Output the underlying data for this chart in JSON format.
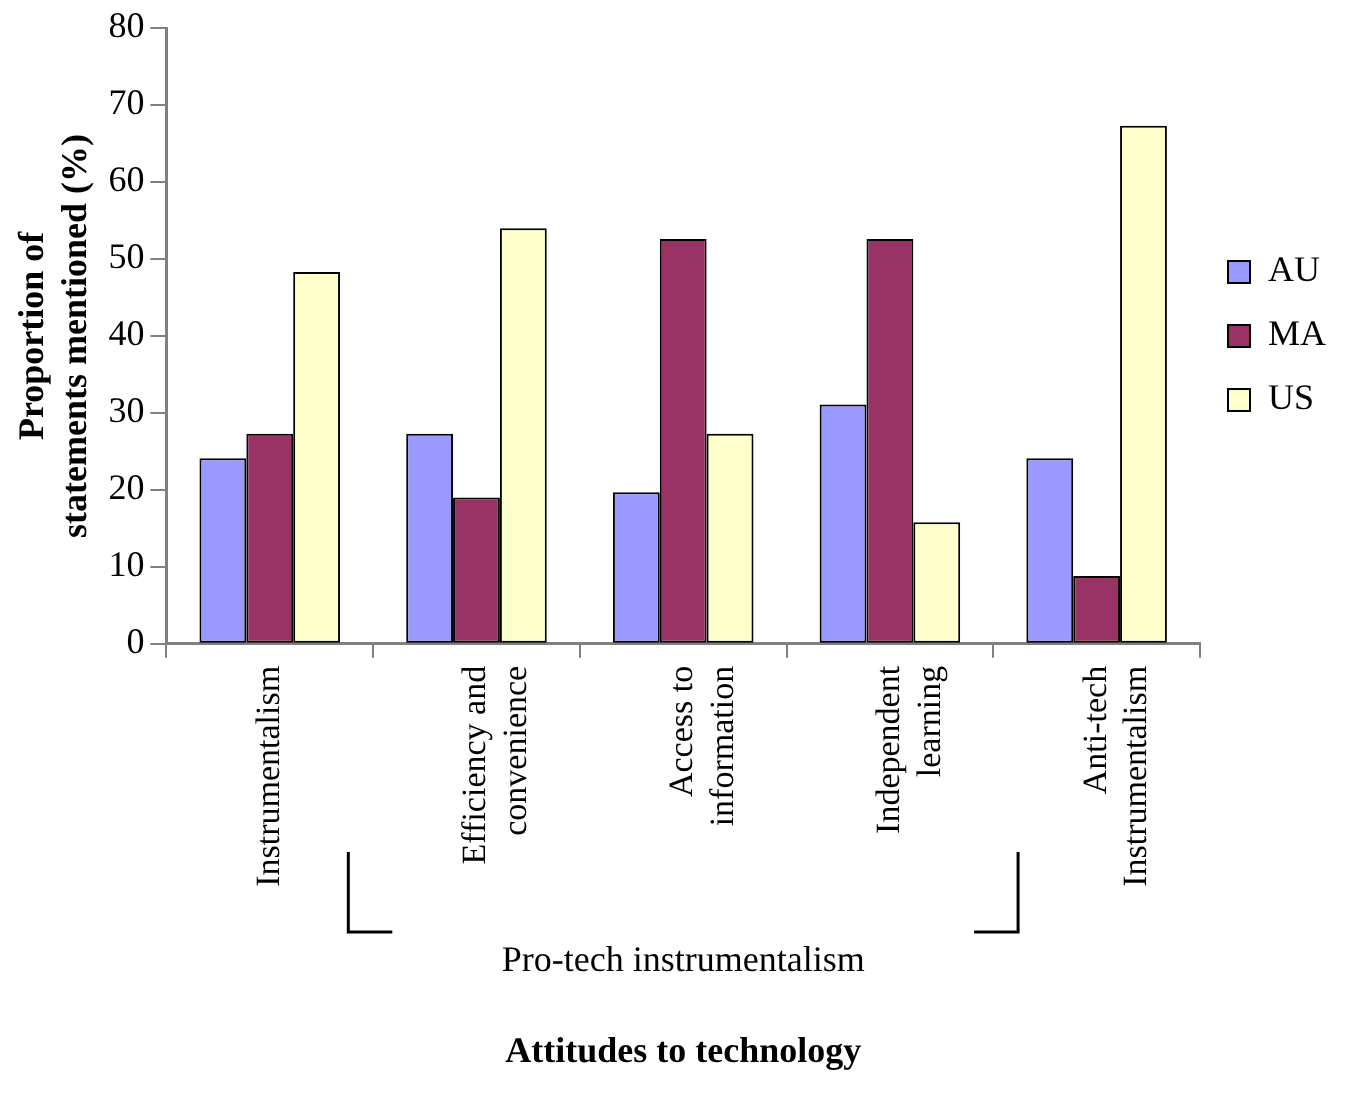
{
  "chart_data": {
    "type": "bar",
    "xlabel": "Attitudes to technology",
    "ylabel": "Proportion of statements mentioned (%)",
    "categories": [
      "Instrumentalism",
      "Efficiency and convenience",
      "Access to information",
      "Independent learning",
      "Anti-tech Instrumentalism"
    ],
    "series": [
      {
        "name": "AU",
        "color": "#9999ff",
        "values": [
          24.1,
          27.3,
          19.7,
          31.1,
          24.1
        ]
      },
      {
        "name": "MA",
        "color": "#993366",
        "values": [
          27.3,
          19.0,
          52.6,
          52.6,
          8.8
        ]
      },
      {
        "name": "US",
        "color": "#ffffcc",
        "values": [
          48.3,
          54.0,
          27.3,
          15.8,
          67.3
        ]
      }
    ],
    "ylim": [
      0,
      80
    ],
    "yticks": [
      0,
      10,
      20,
      30,
      40,
      50,
      60,
      70,
      80
    ],
    "grid": false,
    "legend": "right",
    "annotations": [
      "Pro-tech instrumentalism"
    ]
  }
}
